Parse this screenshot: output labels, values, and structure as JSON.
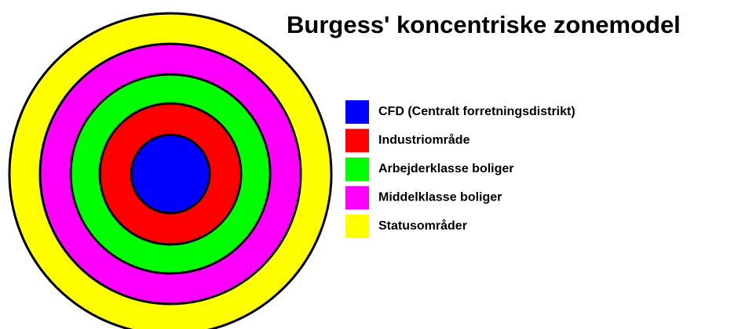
{
  "title": "Burgess' koncentriske zonemodel",
  "zones": [
    {
      "label": "CFD (Centralt forretningsdistrikt)",
      "color": "#0000ff"
    },
    {
      "label": "Industriområde",
      "color": "#ff0000"
    },
    {
      "label": "Arbejderklasse boliger",
      "color": "#00ff00"
    },
    {
      "label": "Middelklasse boliger",
      "color": "#ff00ff"
    },
    {
      "label": "Statusområder",
      "color": "#ffff00"
    }
  ]
}
